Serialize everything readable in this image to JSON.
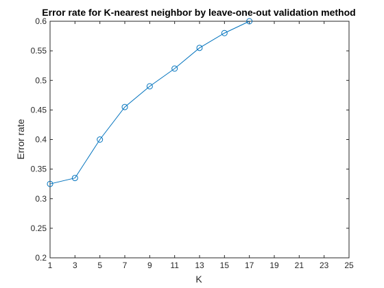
{
  "chart_data": {
    "type": "line",
    "title": "Error rate for K-nearest neighbor by leave-one-out validation method",
    "xlabel": "K",
    "ylabel": "Error rate",
    "xlim": [
      1,
      25
    ],
    "ylim": [
      0.2,
      0.6
    ],
    "xticks": [
      "1",
      "3",
      "5",
      "7",
      "9",
      "11",
      "13",
      "15",
      "17",
      "19",
      "21",
      "23",
      "25"
    ],
    "yticks": [
      "0.2",
      "0.25",
      "0.3",
      "0.35",
      "0.4",
      "0.45",
      "0.5",
      "0.55",
      "0.6"
    ],
    "grid": false,
    "series": [
      {
        "color": "#0072BD",
        "marker": "circle",
        "x": [
          1,
          3,
          5,
          7,
          9,
          11,
          13,
          15,
          17
        ],
        "y": [
          0.325,
          0.335,
          0.4,
          0.455,
          0.49,
          0.52,
          0.555,
          0.58,
          0.6
        ]
      }
    ]
  }
}
